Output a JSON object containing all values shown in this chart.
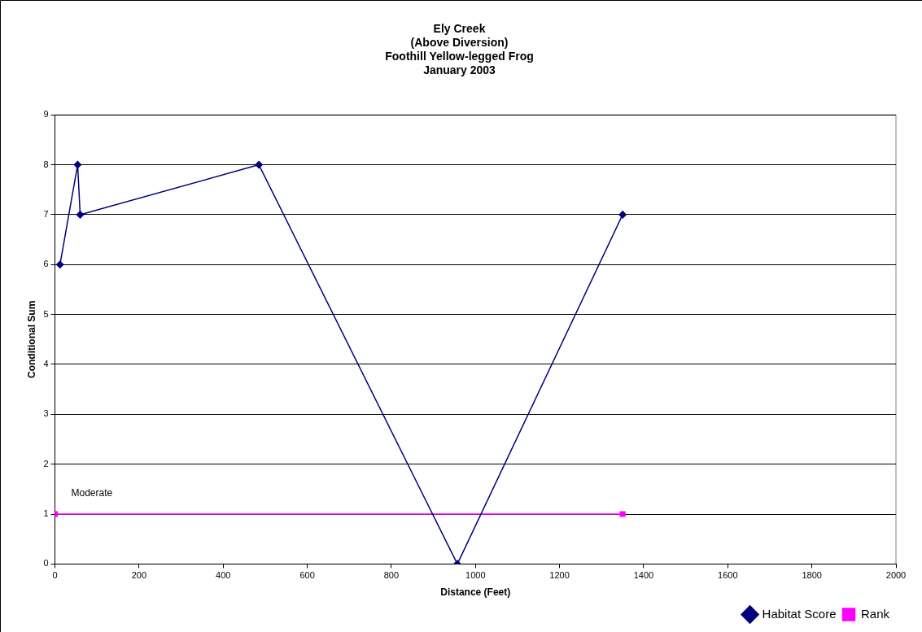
{
  "chart_data": {
    "type": "line",
    "title": "Ely Creek\n(Above Diversion)\nFoothill Yellow-legged Frog\nJanuary 2003",
    "xlabel": "Distance (Feet)",
    "ylabel": "Conditional Sum",
    "xlim": [
      0,
      2000
    ],
    "xticks": [
      0,
      200,
      400,
      600,
      800,
      1000,
      1200,
      1400,
      1600,
      1800,
      2000
    ],
    "ylim": [
      0,
      9
    ],
    "yticks": [
      0,
      1,
      2,
      3,
      4,
      5,
      6,
      7,
      8,
      9
    ],
    "grid": "y",
    "legend": "bottom right",
    "series": [
      {
        "name": "Habitat Score",
        "color": "#000080",
        "marker": "diamond",
        "x": [
          12,
          54,
          60,
          485,
          957,
          1350
        ],
        "values": [
          6,
          8,
          7,
          8,
          0,
          7
        ]
      },
      {
        "name": "Rank",
        "color": "#ff00ff",
        "marker": "square",
        "x": [
          0,
          1350
        ],
        "values": [
          1,
          1
        ]
      }
    ],
    "annotations": [
      "Moderate"
    ]
  }
}
